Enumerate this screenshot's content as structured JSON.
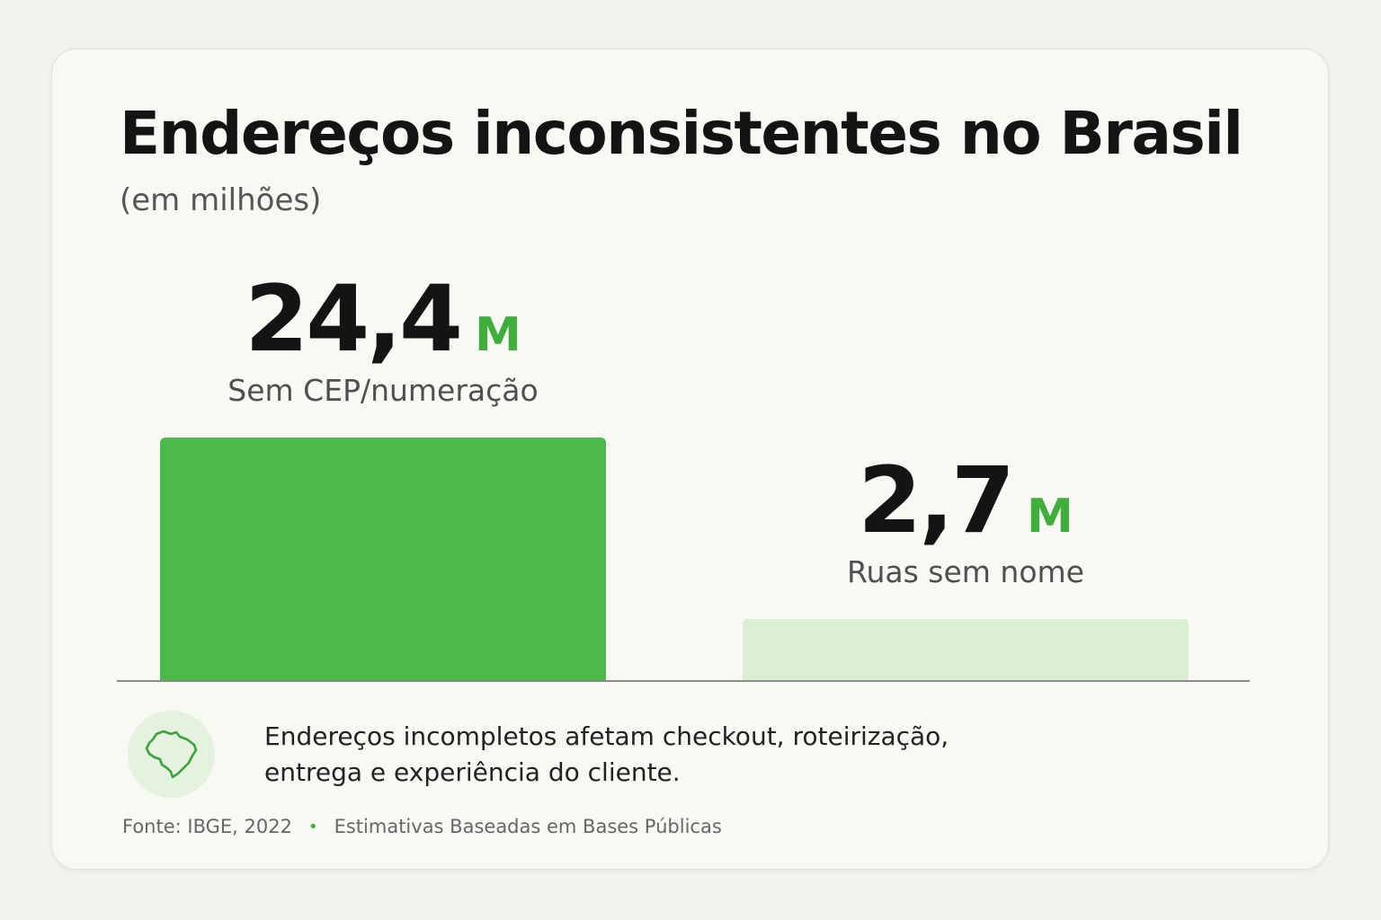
{
  "title": "Endereços inconsistentes no Brasil",
  "subtitle": "(em milhões)",
  "chart_data": {
    "type": "bar",
    "title": "Endereços inconsistentes no Brasil",
    "subtitle": "(em milhões)",
    "categories": [
      "Sem CEP/numeração",
      "Ruas sem nome"
    ],
    "values": [
      24.4,
      2.7
    ],
    "value_labels": [
      "24,4",
      "2,7"
    ],
    "unit": "M",
    "colors": [
      "#4cb848",
      "#d8efd1"
    ],
    "xlabel": "",
    "ylabel": "",
    "grid": false
  },
  "note": {
    "line1": "Endereços incompletos afetam checkout, roteirização,",
    "line2": "entrega e experiência do cliente."
  },
  "icon": "brazil-map-icon",
  "source": {
    "left": "Fonte: IBGE, 2022",
    "separator": "•",
    "right": "Estimativas Baseadas em Bases Públicas"
  }
}
